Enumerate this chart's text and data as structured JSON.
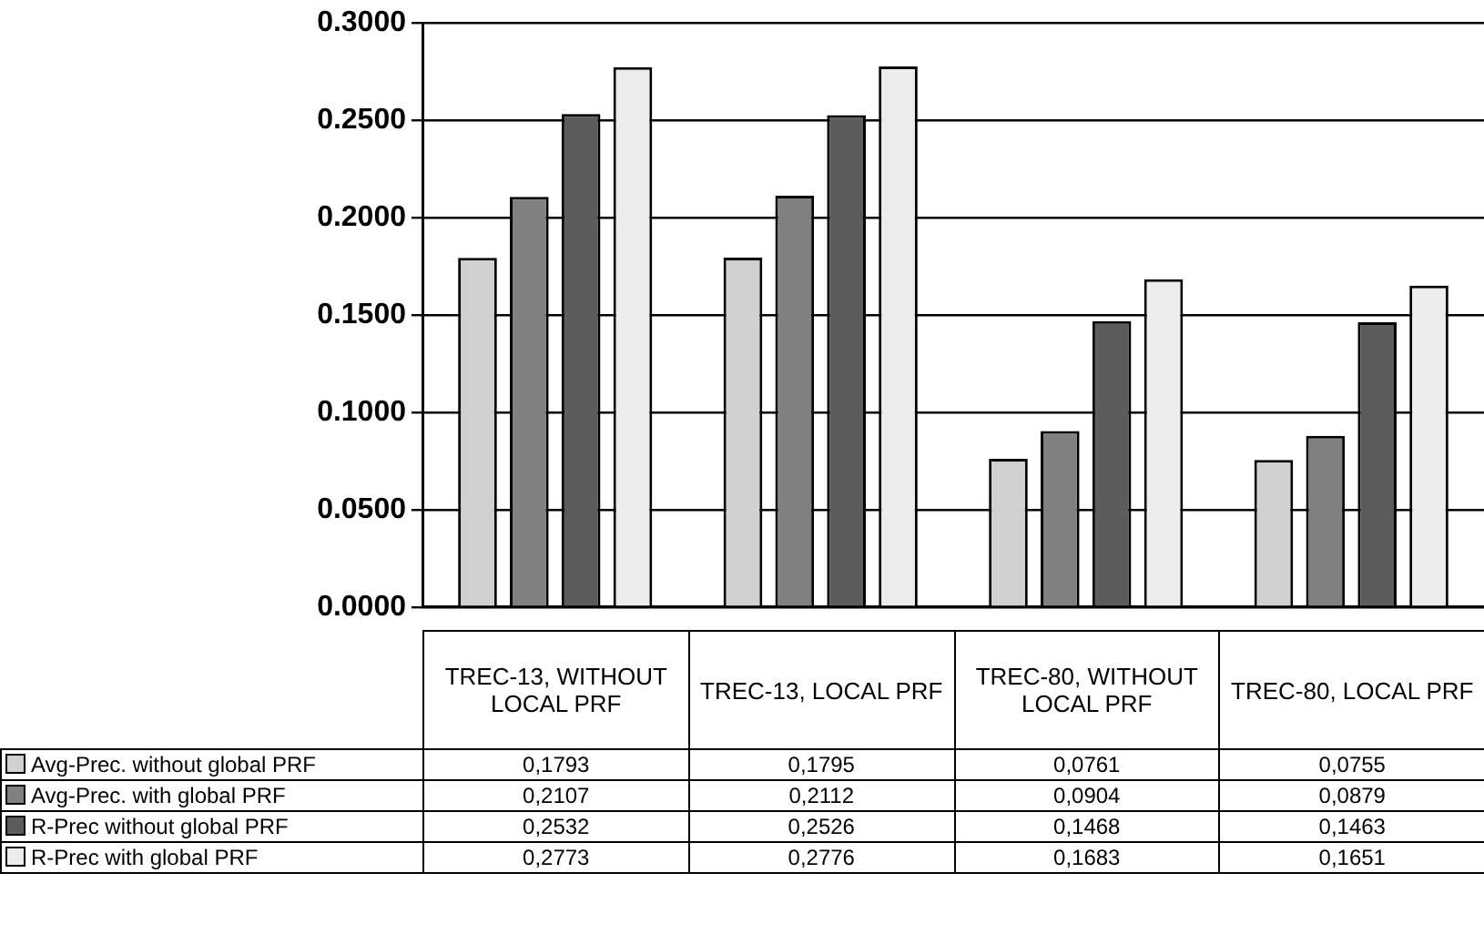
{
  "chart_data": {
    "type": "bar",
    "categories": [
      "TREC-13, WITHOUT LOCAL PRF",
      "TREC-13, LOCAL PRF",
      "TREC-80, WITHOUT LOCAL PRF",
      "TREC-80, LOCAL PRF"
    ],
    "series": [
      {
        "name": "Avg-Prec. without global PRF",
        "color": "#d0d0d0",
        "values": [
          0.1793,
          0.1795,
          0.0761,
          0.0755
        ],
        "value_labels": [
          "0,1793",
          "0,1795",
          "0,0761",
          "0,0755"
        ]
      },
      {
        "name": "Avg-Prec. with global PRF",
        "color": "#808080",
        "values": [
          0.2107,
          0.2112,
          0.0904,
          0.0879
        ],
        "value_labels": [
          "0,2107",
          "0,2112",
          "0,0904",
          "0,0879"
        ]
      },
      {
        "name": "R-Prec without global PRF",
        "color": "#5c5c5c",
        "values": [
          0.2532,
          0.2526,
          0.1468,
          0.1463
        ],
        "value_labels": [
          "0,2532",
          "0,2526",
          "0,1468",
          "0,1463"
        ]
      },
      {
        "name": "R-Prec with global PRF",
        "color": "#ececec",
        "values": [
          0.2773,
          0.2776,
          0.1683,
          0.1651
        ],
        "value_labels": [
          "0,2773",
          "0,2776",
          "0,1683",
          "0,1651"
        ]
      }
    ],
    "ylim": [
      0,
      0.3
    ],
    "yticks": [
      {
        "value": 0,
        "label": "0.0000"
      },
      {
        "value": 0.05,
        "label": "0.0500"
      },
      {
        "value": 0.1,
        "label": "0.1000"
      },
      {
        "value": 0.15,
        "label": "0.1500"
      },
      {
        "value": 0.2,
        "label": "0.2000"
      },
      {
        "value": 0.25,
        "label": "0.2500"
      },
      {
        "value": 0.3,
        "label": "0.3000"
      }
    ],
    "grid": "y",
    "legend": "bottom"
  }
}
